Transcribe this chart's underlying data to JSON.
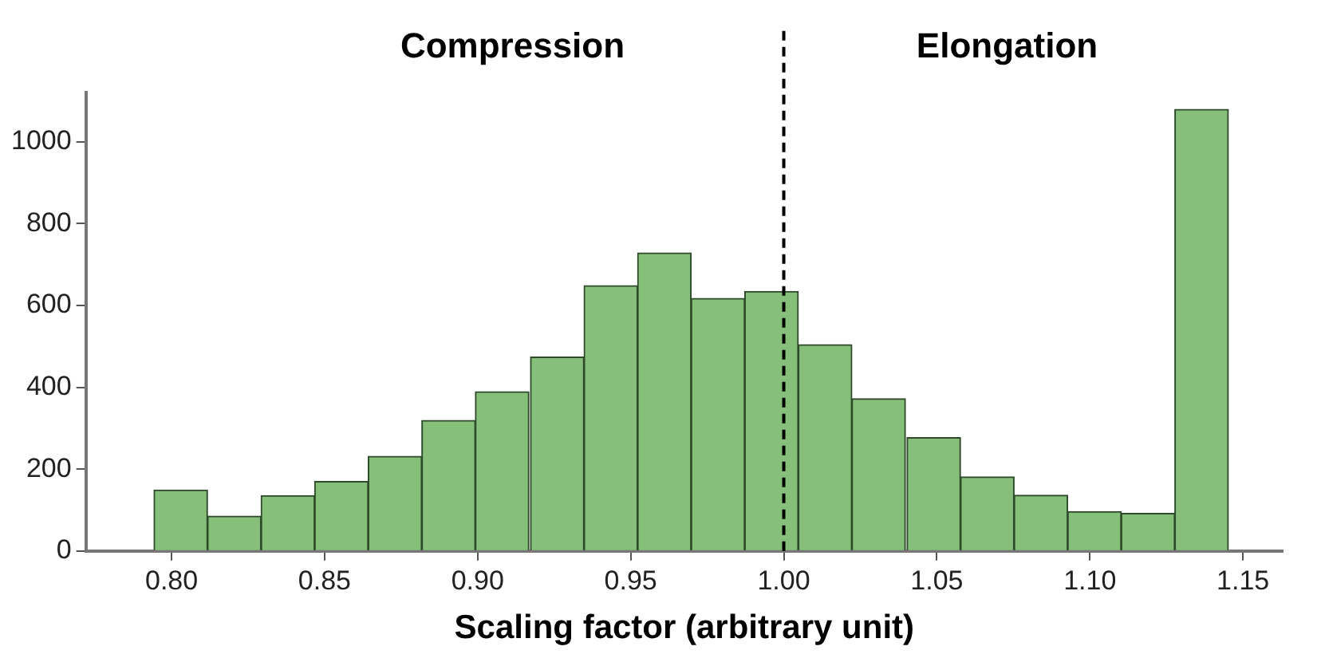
{
  "chart_data": {
    "type": "histogram",
    "xlabel": "Scaling factor (arbitrary unit)",
    "bins": [
      0.794,
      0.812,
      0.829,
      0.847,
      0.864,
      0.882,
      0.899,
      0.917,
      0.935,
      0.952,
      0.97,
      0.987,
      1.005,
      1.022,
      1.04,
      1.058,
      1.075,
      1.093,
      1.11,
      1.128,
      1.145
    ],
    "values": [
      149,
      85,
      135,
      170,
      231,
      319,
      389,
      474,
      648,
      728,
      617,
      634,
      504,
      372,
      277,
      181,
      136,
      96,
      92,
      1079
    ],
    "color": "#86bf7a",
    "xlim": [
      0.772,
      1.163
    ],
    "xticks": [
      {
        "value": 0.8,
        "label": "0.80"
      },
      0.85,
      {
        "value": 0.9,
        "label": "0.90"
      },
      0.95,
      {
        "value": 1.0,
        "label": "1.00"
      },
      1.05,
      {
        "value": 1.1,
        "label": "1.10"
      },
      1.15
    ],
    "ylim": [
      0,
      1120
    ],
    "yticks": [
      0,
      200,
      400,
      600,
      800,
      1000
    ],
    "ref_lines": [
      {
        "axis": "x",
        "value": 1.0,
        "color": "#000000",
        "line_style": "dashed"
      }
    ],
    "annotations": [
      "Compression",
      "Elongation"
    ],
    "grid": false,
    "legend": false
  }
}
